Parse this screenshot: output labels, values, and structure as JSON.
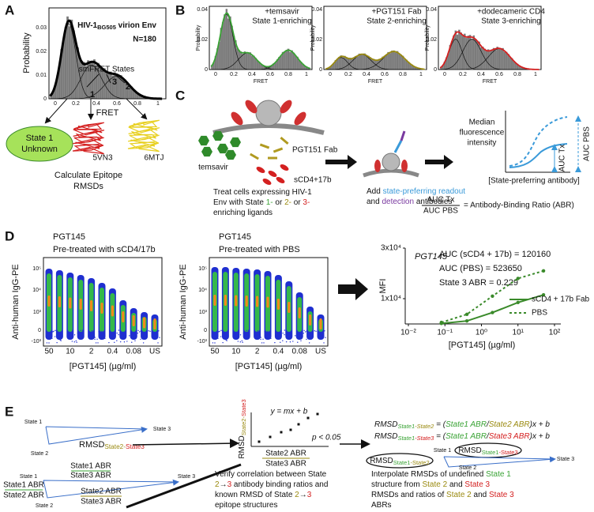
{
  "panel_a": {
    "label": "A",
    "title": [
      {
        "text": "HIV-1"
      },
      {
        "text": "BG505",
        "sub": true
      },
      {
        "text": " virion Env"
      }
    ],
    "n": "N=180",
    "y_label": "Probability",
    "x_label": "FRET",
    "x_ticks": [
      0,
      0.2,
      0.4,
      0.6,
      0.8,
      1
    ],
    "y_ticks": [
      0,
      0.01,
      0.02,
      0.03
    ],
    "states_label": "smFRET States",
    "state_numbers": [
      "1",
      "2",
      "3"
    ],
    "state1": [
      "State 1",
      "Unknown"
    ],
    "structures": [
      "5VN3",
      "6MTJ"
    ],
    "caption": [
      "Calculate Epitope",
      "RMSDs"
    ]
  },
  "panel_b": {
    "label": "B",
    "y_label": "Probability",
    "x_label": "FRET",
    "x_ticks": [
      0,
      0.2,
      0.4,
      0.6,
      0.8,
      1
    ],
    "y_ticks": [
      0,
      0.02,
      0.04
    ],
    "plots": [
      {
        "lines": [
          "+temsavir",
          "State 1-enriching"
        ],
        "color": "#3aa335"
      },
      {
        "lines": [
          "+PGT151 Fab",
          "State 2-enriching"
        ],
        "color": "#9a8a10"
      },
      {
        "lines": [
          "+dodecameric CD4",
          "State 3-enriching"
        ],
        "color": "#d42020"
      }
    ]
  },
  "panel_c": {
    "label": "C",
    "ligands": [
      {
        "text": "temsavir",
        "color": "#3aa335"
      },
      {
        "text": "PGT151 Fab",
        "color": "#9a8a10"
      },
      {
        "text": "sCD4+17b",
        "color": "#d42020"
      }
    ],
    "treat": [
      [
        {
          "text": "Treat cells expressing HIV-1"
        }
      ],
      [
        {
          "text": "Env with State "
        },
        {
          "text": "1-",
          "color": "#3aa335"
        },
        {
          "text": " or "
        },
        {
          "text": "2-",
          "color": "#9a8a10"
        },
        {
          "text": " or "
        },
        {
          "text": "3-",
          "color": "#d42020"
        }
      ],
      [
        {
          "text": "enriching ligands"
        }
      ]
    ],
    "add": [
      [
        {
          "text": "Add "
        },
        {
          "text": "state-preferring readout",
          "color": "#3a9ad9"
        }
      ],
      [
        {
          "text": "and "
        },
        {
          "text": "detection",
          "color": "#7a3aa0"
        },
        {
          "text": " antibodies"
        }
      ]
    ],
    "y_label": [
      "Median",
      "fluorescence",
      "intensity"
    ],
    "x_label": "[State-preferring antibody]",
    "auc_tx": "AUC Tx",
    "auc_pbs": "AUC PBS",
    "ratio_num": "AUC Tx",
    "ratio_den": "AUC PBS",
    "ratio_text": "= Antibody-Binding Ratio (ABR)"
  },
  "panel_d": {
    "label": "D",
    "y_label": "Anti-human IgG-PE",
    "x_label": "[PGT145] (µg/ml)",
    "flow_plots": [
      {
        "title": [
          "PGT145",
          "Pre-treated with sCD4/17b"
        ]
      },
      {
        "title": [
          "PGT145",
          "Pre-treated with PBS"
        ]
      }
    ],
    "y_ticks": [
      "10⁵",
      "10⁴",
      "10³",
      "0",
      "-10³"
    ],
    "categories": [
      "50",
      "10",
      "2",
      "0.4",
      "0.08",
      "US"
    ],
    "mfi_chart": {
      "type": "line",
      "title": "PGT145",
      "title_color": "#3aa335",
      "annotations": [
        "AUC (sCD4 + 17b) = 120160",
        "AUC (PBS) = 523650",
        "State 3 ABR = 0.229"
      ],
      "y_label": "MFI",
      "x_label": "[PGT145] (µg/ml)",
      "log_x": true,
      "xlim": [
        0.01,
        100
      ],
      "xticks": [
        {
          "value": 0.01,
          "label": "10⁻²"
        },
        {
          "value": 0.1,
          "label": "10⁻¹"
        },
        {
          "value": 1,
          "label": "10⁰"
        },
        {
          "value": 10,
          "label": "10¹"
        },
        {
          "value": 100,
          "label": "10²"
        }
      ],
      "ylim": [
        0,
        30000
      ],
      "yticks": [
        {
          "value": 10000,
          "label": "1x10⁴"
        },
        {
          "value": 30000,
          "label": "3x10⁴"
        }
      ],
      "series": [
        {
          "name": "sCD4 + 17b Fab",
          "color": "#3a8a2a",
          "dash": false,
          "x": [
            0.08,
            0.4,
            2,
            10,
            50
          ],
          "values": [
            200,
            1200,
            4500,
            8500,
            11500
          ]
        },
        {
          "name": "PBS",
          "color": "#3a8a2a",
          "dash": true,
          "x": [
            0.08,
            0.4,
            2,
            10,
            50
          ],
          "values": [
            600,
            3800,
            11000,
            18000,
            21000
          ]
        }
      ]
    }
  },
  "panel_e": {
    "label": "E",
    "states": [
      "State 1",
      "State 2",
      "State 3"
    ],
    "rmsd23": [
      {
        "text": "RMSD"
      },
      {
        "text": "State2-",
        "sub": true,
        "color": "#9a8a10"
      },
      {
        "text": "State3",
        "sub": true,
        "color": "#d42020"
      }
    ],
    "fit": "y = mx + b",
    "p": "p < 0.05",
    "s1abr": "State1 ABR",
    "s2abr": "State2 ABR",
    "s3abr": "State3 ABR",
    "verify": [
      [
        {
          "text": "Verify correlation between State"
        }
      ],
      [
        {
          "text": "2",
          "color": "#9a8a10"
        },
        {
          "text": "→"
        },
        {
          "text": "3",
          "color": "#d42020"
        },
        {
          "text": " antibody binding ratios and"
        }
      ],
      [
        {
          "text": "known RMSD of State "
        },
        {
          "text": "2",
          "color": "#9a8a10"
        },
        {
          "text": "→"
        },
        {
          "text": "3",
          "color": "#d42020"
        }
      ],
      [
        {
          "text": "epitope structures"
        }
      ]
    ],
    "equations": [
      [
        {
          "text": "RMSD"
        },
        {
          "text": "State1",
          "sub": true,
          "color": "#3aa335"
        },
        {
          "text": "-State2",
          "sub": true,
          "color": "#9a8a10"
        },
        {
          "text": " = ("
        },
        {
          "text": "State1 ABR",
          "color": "#3aa335"
        },
        {
          "text": "/"
        },
        {
          "text": "State2 ABR",
          "color": "#9a8a10"
        },
        {
          "text": ")x + b"
        }
      ],
      [
        {
          "text": "RMSD"
        },
        {
          "text": "State1",
          "sub": true,
          "color": "#3aa335"
        },
        {
          "text": "-State3",
          "sub": true,
          "color": "#d42020"
        },
        {
          "text": " = ("
        },
        {
          "text": "State1 ABR",
          "color": "#3aa335"
        },
        {
          "text": "/"
        },
        {
          "text": "State3 ABR",
          "color": "#d42020"
        },
        {
          "text": ")x + b"
        }
      ]
    ],
    "rmsd13": [
      {
        "text": "RMSD"
      },
      {
        "text": "State1",
        "sub": true,
        "color": "#3aa335"
      },
      {
        "text": "-State3",
        "sub": true,
        "color": "#d42020"
      }
    ],
    "rmsd12": [
      {
        "text": "RMSD"
      },
      {
        "text": "State1",
        "sub": true,
        "color": "#3aa335"
      },
      {
        "text": "-State2",
        "sub": true,
        "color": "#9a8a10"
      }
    ],
    "interpolate": [
      [
        {
          "text": "Interpolate RMSDs of undefined "
        },
        {
          "text": "State 1",
          "color": "#3aa335"
        }
      ],
      [
        {
          "text": "structure from "
        },
        {
          "text": "State 2",
          "color": "#9a8a10"
        },
        {
          "text": " and "
        },
        {
          "text": "State 3",
          "color": "#d42020"
        }
      ],
      [
        {
          "text": "RMSDs and ratios of "
        },
        {
          "text": "State 2",
          "color": "#9a8a10"
        },
        {
          "text": " and "
        },
        {
          "text": "State 3",
          "color": "#d42020"
        }
      ],
      [
        {
          "text": "ABRs"
        }
      ]
    ],
    "state_colors": [
      "#3aa335",
      "#9a8a10",
      "#d42020"
    ]
  }
}
